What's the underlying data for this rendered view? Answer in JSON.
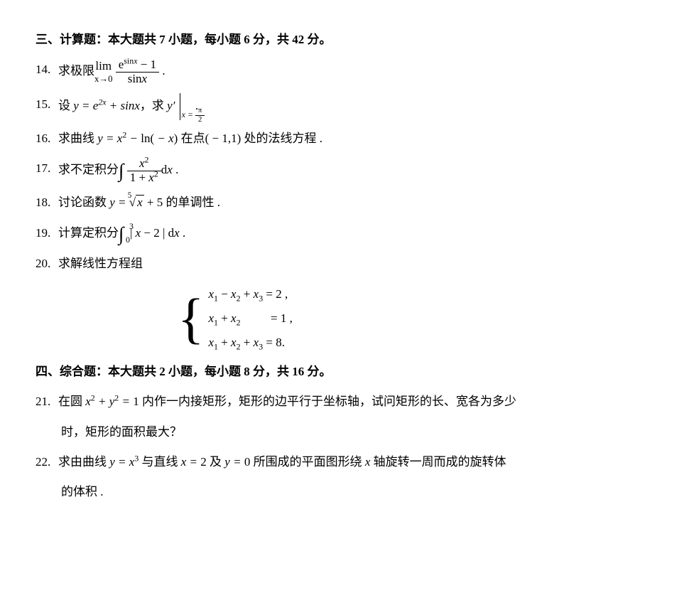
{
  "section3": {
    "header": "三、计算题：本大题共 7 小题，每小题 6 分，共 42 分。",
    "problems": [
      {
        "num": "14.",
        "prefix": "求极限",
        "limword": "lim",
        "limsub": "x→0",
        "frac_numr": "e<sup>sin<i>x</i></sup> − 1",
        "frac_denm": "sin<i>x</i>",
        "suffix": " ."
      },
      {
        "num": "15.",
        "prefix": "设 ",
        "expr": "y = e<sup>2<i>x</i></sup> + sin<i>x</i>",
        "mid": "，求 ",
        "yprime": "y′",
        "barlabel": "x = <span class='frac' style='font-size:0.9em'><span class='numr'>π</span><span class='denm'>2</span></span>",
        "suffix": " ."
      },
      {
        "num": "16.",
        "text": "求曲线 <span class='math'>y = x<sup><span class='upright'>2</span></sup> − <span class='upright'>ln(</span> − x<span class='upright'>)</span></span> 在点( − 1,1) 处的法线方程 ."
      },
      {
        "num": "17.",
        "prefix": "求不定积分",
        "frac_numr": "<i>x</i><sup>2</sup>",
        "frac_denm": "1 + <i>x</i><sup>2</sup>",
        "dx": "d<i>x</i>",
        "suffix": " ."
      },
      {
        "num": "18.",
        "prefix": "讨论函数 ",
        "ylabel": "y = ",
        "rootdeg": "5",
        "radicand": "x",
        "plus": " + 5",
        "suffix": " 的单调性 ."
      },
      {
        "num": "19.",
        "prefix": "计算定积分",
        "upper": "3",
        "lower": "0",
        "body": " | <i>x</i> − 2 | d<i>x</i>",
        "suffix": " ."
      },
      {
        "num": "20.",
        "text": "求解线性方程组",
        "sys": [
          "<i>x</i><sub>1</sub> − <i>x</i><sub>2</sub> + <i>x</i><sub>3</sub> = 2 ,",
          "<i>x</i><sub>1</sub> + <i>x</i><sub>2</sub>&nbsp;&nbsp;&nbsp;&nbsp;&nbsp;&nbsp;&nbsp;&nbsp;&nbsp; = 1 ,",
          "<i>x</i><sub>1</sub> + <i>x</i><sub>2</sub> + <i>x</i><sub>3</sub> = 8."
        ]
      }
    ]
  },
  "section4": {
    "header": "四、综合题：本大题共 2 小题，每小题 8 分，共 16 分。",
    "problems": [
      {
        "num": "21.",
        "line1": "在圆 <span class='math'>x<sup><span class='upright'>2</span></sup> + y<sup><span class='upright'>2</span></sup> = <span class='upright'>1</span></span> 内作一内接矩形，矩形的边平行于坐标轴，试问矩形的长、宽各为多少",
        "line2": "时，矩形的面积最大？"
      },
      {
        "num": "22.",
        "line1": "求由曲线 <span class='math'>y = x<sup><span class='upright'>3</span></sup></span> 与直线 <span class='math'>x = <span class='upright'>2</span></span> 及 <span class='math'>y = <span class='upright'>0</span></span> 所围成的平面图形绕 <span class='math'>x</span> 轴旋转一周而成的旋转体",
        "line2": "的体积 ."
      }
    ]
  }
}
